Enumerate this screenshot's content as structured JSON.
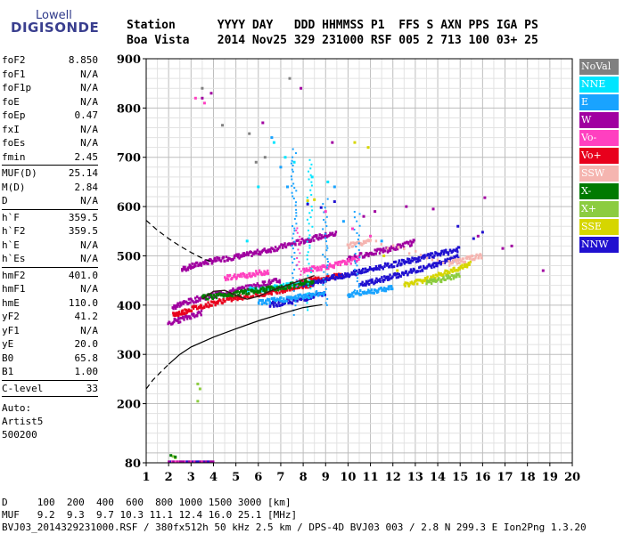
{
  "logo": {
    "top": "Lowell",
    "main": "DIGISONDE"
  },
  "header": {
    "line1": "Station      YYYY DAY   DDD HHMMSS P1  FFS S AXN PPS IGA PS",
    "line2": "Boa Vista    2014 Nov25 329 231000 RSF 005 2 713 100 03+ 25"
  },
  "params": {
    "group1": [
      {
        "k": "foF2",
        "v": "8.850"
      },
      {
        "k": "foF1",
        "v": "N/A"
      },
      {
        "k": "foF1p",
        "v": "N/A"
      },
      {
        "k": "foE",
        "v": "N/A"
      },
      {
        "k": "foEp",
        "v": "0.47"
      },
      {
        "k": "fxI",
        "v": "N/A"
      },
      {
        "k": "foEs",
        "v": "N/A"
      },
      {
        "k": "fmin",
        "v": "2.45"
      }
    ],
    "group2": [
      {
        "k": "MUF(D)",
        "v": "25.14"
      },
      {
        "k": "M(D)",
        "v": "2.84"
      },
      {
        "k": "D",
        "v": "N/A"
      }
    ],
    "group3": [
      {
        "k": "h`F",
        "v": "359.5"
      },
      {
        "k": "h`F2",
        "v": "359.5"
      },
      {
        "k": "h`E",
        "v": "N/A"
      },
      {
        "k": "h`Es",
        "v": "N/A"
      }
    ],
    "group4": [
      {
        "k": "hmF2",
        "v": "401.0"
      },
      {
        "k": "hmF1",
        "v": "N/A"
      },
      {
        "k": "hmE",
        "v": "110.0"
      },
      {
        "k": "yF2",
        "v": "41.2"
      },
      {
        "k": "yF1",
        "v": "N/A"
      },
      {
        "k": "yE",
        "v": "20.0"
      },
      {
        "k": "B0",
        "v": "65.8"
      },
      {
        "k": "B1",
        "v": "1.00"
      }
    ],
    "group5": [
      {
        "k": "C-level",
        "v": "33"
      }
    ],
    "auto": [
      "Auto:",
      "Artist5",
      "500200"
    ]
  },
  "footer": {
    "line1": "D     100  200  400  600  800 1000 1500 3000 [km]",
    "line2": "MUF   9.2  9.3  9.7 10.3 11.1 12.4 16.0 25.1 [MHz]",
    "line3": "BVJ03_2014329231000.RSF / 380fx512h 50 kHz 2.5 km / DPS-4D BVJ03 003 / 2.8 N 299.3 E Ion2Png 1.3.20"
  },
  "legend": [
    {
      "label": "NoVal",
      "color": "#808080"
    },
    {
      "label": "NNE",
      "color": "#00e5ff"
    },
    {
      "label": "E",
      "color": "#19a3ff"
    },
    {
      "label": "W",
      "color": "#a000a0"
    },
    {
      "label": "Vo-",
      "color": "#ff40c0"
    },
    {
      "label": "Vo+",
      "color": "#e8001c"
    },
    {
      "label": "SSW",
      "color": "#f5b5b0"
    },
    {
      "label": "X-",
      "color": "#007a00"
    },
    {
      "label": "X+",
      "color": "#8ccc40"
    },
    {
      "label": "SSE",
      "color": "#d6d600"
    },
    {
      "label": "NNW",
      "color": "#2010d0"
    }
  ],
  "chart_data": {
    "type": "scatter",
    "xlabel": "",
    "ylabel": "",
    "xlim": [
      1,
      20
    ],
    "ylim": [
      80,
      900
    ],
    "x_ticks": [
      "1",
      "2",
      "3",
      "4",
      "5",
      "6",
      "7",
      "8",
      "9",
      "10",
      "11",
      "12",
      "13",
      "14",
      "15",
      "16",
      "17",
      "18",
      "19",
      "20"
    ],
    "y_ticks": [
      "80",
      "200",
      "300",
      "400",
      "500",
      "600",
      "700",
      "800",
      "900"
    ],
    "grid": true,
    "x_minor_step": 0.5,
    "y_minor_step": 20,
    "traces": [
      {
        "name": "W",
        "color": "#a000a0",
        "points": [
          [
            2.6,
            472
          ],
          [
            3.0,
            478
          ],
          [
            3.5,
            485
          ],
          [
            4.0,
            490
          ],
          [
            4.5,
            494
          ],
          [
            5.0,
            498
          ],
          [
            5.5,
            502
          ],
          [
            6.0,
            507
          ],
          [
            6.5,
            512
          ],
          [
            7.0,
            518
          ],
          [
            7.5,
            524
          ],
          [
            8.0,
            530
          ],
          [
            8.5,
            536
          ],
          [
            9.0,
            541
          ],
          [
            9.5,
            545
          ]
        ]
      },
      {
        "name": "W",
        "color": "#a000a0",
        "points": [
          [
            2.2,
            395
          ],
          [
            2.5,
            402
          ],
          [
            3.0,
            408
          ],
          [
            3.5,
            415
          ],
          [
            4.0,
            420
          ],
          [
            4.5,
            425
          ],
          [
            5.0,
            430
          ],
          [
            5.5,
            435
          ],
          [
            6.0,
            440
          ],
          [
            6.5,
            446
          ],
          [
            7.0,
            450
          ]
        ]
      },
      {
        "name": "W",
        "color": "#a000a0",
        "points": [
          [
            10.0,
            495
          ],
          [
            10.5,
            500
          ],
          [
            11.0,
            505
          ],
          [
            11.5,
            510
          ],
          [
            12.0,
            515
          ],
          [
            12.5,
            522
          ],
          [
            13.0,
            528
          ]
        ]
      },
      {
        "name": "W",
        "color": "#a000a0",
        "points": [
          [
            2.0,
            365
          ],
          [
            2.5,
            370
          ],
          [
            3.0,
            378
          ],
          [
            3.5,
            385
          ]
        ]
      },
      {
        "name": "Vo+",
        "color": "#e8001c",
        "points": [
          [
            2.2,
            380
          ],
          [
            2.6,
            385
          ],
          [
            3.0,
            392
          ],
          [
            3.5,
            398
          ],
          [
            4.0,
            404
          ],
          [
            4.5,
            410
          ],
          [
            5.0,
            414
          ],
          [
            5.5,
            418
          ],
          [
            6.0,
            422
          ],
          [
            6.5,
            426
          ],
          [
            7.0,
            430
          ],
          [
            7.5,
            434
          ],
          [
            8.0,
            438
          ],
          [
            8.5,
            442
          ]
        ]
      },
      {
        "name": "Vo+",
        "color": "#e8001c",
        "points": [
          [
            7.8,
            445
          ],
          [
            8.2,
            448
          ],
          [
            8.6,
            452
          ],
          [
            9.0,
            455
          ],
          [
            9.4,
            458
          ],
          [
            9.8,
            461
          ]
        ]
      },
      {
        "name": "Vo-",
        "color": "#ff40c0",
        "points": [
          [
            8.0,
            470
          ],
          [
            8.5,
            474
          ],
          [
            9.0,
            478
          ],
          [
            9.5,
            482
          ],
          [
            10.0,
            488
          ],
          [
            10.5,
            494
          ]
        ]
      },
      {
        "name": "Vo-",
        "color": "#ff40c0",
        "points": [
          [
            4.5,
            455
          ],
          [
            5.0,
            458
          ],
          [
            5.5,
            461
          ],
          [
            6.0,
            465
          ],
          [
            6.5,
            468
          ]
        ]
      },
      {
        "name": "NNW",
        "color": "#2010d0",
        "points": [
          [
            8.0,
            440
          ],
          [
            8.5,
            445
          ],
          [
            9.0,
            452
          ],
          [
            9.5,
            458
          ],
          [
            10.0,
            462
          ],
          [
            10.5,
            468
          ],
          [
            11.0,
            472
          ],
          [
            11.5,
            478
          ],
          [
            12.0,
            482
          ],
          [
            12.5,
            488
          ],
          [
            13.0,
            492
          ],
          [
            13.5,
            498
          ],
          [
            14.0,
            503
          ],
          [
            14.5,
            508
          ],
          [
            15.0,
            514
          ]
        ]
      },
      {
        "name": "NNW",
        "color": "#2010d0",
        "points": [
          [
            10.5,
            440
          ],
          [
            11.0,
            446
          ],
          [
            11.5,
            452
          ],
          [
            12.0,
            458
          ],
          [
            12.5,
            464
          ],
          [
            13.0,
            470
          ],
          [
            13.5,
            476
          ],
          [
            14.0,
            484
          ],
          [
            14.5,
            490
          ],
          [
            15.0,
            498
          ]
        ]
      },
      {
        "name": "NNW",
        "color": "#2010d0",
        "points": [
          [
            6.5,
            400
          ],
          [
            7.0,
            404
          ],
          [
            7.5,
            408
          ],
          [
            8.0,
            413
          ],
          [
            8.5,
            418
          ],
          [
            9.0,
            423
          ]
        ]
      },
      {
        "name": "NNE",
        "color": "#00e5ff",
        "points": [
          [
            5.5,
            430
          ],
          [
            6.0,
            432
          ],
          [
            6.5,
            435
          ],
          [
            7.0,
            438
          ],
          [
            7.5,
            441
          ],
          [
            8.0,
            444
          ]
        ]
      },
      {
        "name": "E",
        "color": "#19a3ff",
        "points": [
          [
            6.0,
            405
          ],
          [
            6.5,
            408
          ],
          [
            7.0,
            411
          ],
          [
            7.5,
            414
          ],
          [
            8.0,
            418
          ],
          [
            8.5,
            422
          ],
          [
            9.0,
            425
          ]
        ]
      },
      {
        "name": "E",
        "color": "#19a3ff",
        "points": [
          [
            10.0,
            420
          ],
          [
            10.5,
            424
          ],
          [
            11.0,
            428
          ],
          [
            11.5,
            432
          ],
          [
            12.0,
            436
          ]
        ]
      },
      {
        "name": "SSE",
        "color": "#d6d600",
        "points": [
          [
            12.5,
            440
          ],
          [
            13.0,
            446
          ],
          [
            13.5,
            452
          ],
          [
            14.0,
            460
          ],
          [
            14.5,
            468
          ],
          [
            15.0,
            476
          ],
          [
            15.5,
            484
          ]
        ]
      },
      {
        "name": "SSW",
        "color": "#f5b5b0",
        "points": [
          [
            10.0,
            520
          ],
          [
            10.5,
            525
          ],
          [
            11.0,
            530
          ],
          [
            14.5,
            485
          ],
          [
            15.0,
            490
          ],
          [
            15.5,
            495
          ],
          [
            16.0,
            500
          ]
        ]
      },
      {
        "name": "X-",
        "color": "#007a00",
        "points": [
          [
            3.5,
            415
          ],
          [
            4.0,
            418
          ],
          [
            4.5,
            421
          ],
          [
            5.0,
            424
          ],
          [
            5.5,
            427
          ],
          [
            6.0,
            430
          ],
          [
            6.5,
            433
          ],
          [
            7.0,
            436
          ],
          [
            7.5,
            440
          ],
          [
            8.0,
            444
          ],
          [
            8.5,
            448
          ]
        ]
      },
      {
        "name": "X+",
        "color": "#8ccc40",
        "points": [
          [
            13.5,
            445
          ],
          [
            14.0,
            450
          ],
          [
            14.5,
            456
          ],
          [
            15.0,
            462
          ]
        ]
      }
    ],
    "scatter_points": [
      {
        "color": "#a000a0",
        "points": [
          [
            3.5,
            820
          ],
          [
            3.9,
            830
          ],
          [
            6.2,
            770
          ],
          [
            7.9,
            840
          ],
          [
            9.3,
            730
          ],
          [
            10.7,
            580
          ],
          [
            11.2,
            590
          ],
          [
            12.6,
            600
          ],
          [
            13.8,
            595
          ],
          [
            15.8,
            540
          ],
          [
            16.1,
            618
          ],
          [
            16.9,
            515
          ],
          [
            17.3,
            520
          ],
          [
            18.7,
            470
          ]
        ]
      },
      {
        "color": "#2010d0",
        "points": [
          [
            8.2,
            605
          ],
          [
            8.8,
            598
          ],
          [
            9.4,
            610
          ],
          [
            14.9,
            560
          ],
          [
            15.6,
            535
          ],
          [
            16.0,
            548
          ]
        ]
      },
      {
        "color": "#d6d600",
        "points": [
          [
            8.2,
            612
          ],
          [
            8.5,
            614
          ],
          [
            10.3,
            730
          ],
          [
            10.9,
            720
          ],
          [
            11.6,
            500
          ],
          [
            12.2,
            470
          ]
        ]
      },
      {
        "color": "#00e5ff",
        "points": [
          [
            6.7,
            730
          ],
          [
            7.2,
            700
          ],
          [
            7.6,
            690
          ],
          [
            8.4,
            660
          ],
          [
            9.1,
            650
          ],
          [
            6.0,
            640
          ],
          [
            5.5,
            530
          ]
        ]
      },
      {
        "color": "#19a3ff",
        "points": [
          [
            6.6,
            740
          ],
          [
            7.0,
            680
          ],
          [
            7.3,
            640
          ],
          [
            9.4,
            640
          ],
          [
            9.8,
            570
          ],
          [
            11.5,
            530
          ]
        ]
      },
      {
        "color": "#ff40c0",
        "points": [
          [
            3.2,
            820
          ],
          [
            3.6,
            810
          ],
          [
            9.0,
            590
          ],
          [
            10.2,
            555
          ],
          [
            11.0,
            540
          ]
        ]
      },
      {
        "color": "#808080",
        "points": [
          [
            4.4,
            765
          ],
          [
            5.6,
            748
          ],
          [
            5.9,
            690
          ],
          [
            6.3,
            700
          ],
          [
            7.4,
            860
          ],
          [
            3.5,
            840
          ]
        ]
      },
      {
        "color": "#8ccc40",
        "points": [
          [
            3.3,
            240
          ],
          [
            3.4,
            230
          ],
          [
            3.3,
            205
          ],
          [
            2.3,
            90
          ],
          [
            2.2,
            93
          ]
        ]
      },
      {
        "color": "#007a00",
        "points": [
          [
            2.1,
            95
          ],
          [
            2.3,
            92
          ]
        ]
      }
    ],
    "low_band": [
      [
        2.0,
        82
      ],
      [
        2.5,
        82
      ],
      [
        3.0,
        83
      ],
      [
        3.5,
        82
      ],
      [
        4.0,
        82
      ]
    ],
    "profile_solid": [
      [
        2.0,
        280
      ],
      [
        2.5,
        300
      ],
      [
        3.0,
        315
      ],
      [
        4.0,
        335
      ],
      [
        5.0,
        352
      ],
      [
        6.0,
        368
      ],
      [
        7.0,
        382
      ],
      [
        8.0,
        395
      ],
      [
        8.85,
        401
      ]
    ],
    "profile_dashed_low": [
      [
        1.0,
        230
      ],
      [
        1.3,
        248
      ],
      [
        1.6,
        262
      ],
      [
        2.0,
        280
      ]
    ],
    "profile_dashed_high": [
      [
        1.0,
        572
      ],
      [
        1.5,
        552
      ],
      [
        2.0,
        535
      ],
      [
        2.5,
        520
      ],
      [
        3.0,
        507
      ],
      [
        3.5,
        495
      ],
      [
        3.9,
        488
      ]
    ],
    "trace_black": [
      [
        3.5,
        412
      ],
      [
        4.0,
        428
      ],
      [
        4.5,
        430
      ],
      [
        5.0,
        420
      ],
      [
        5.5,
        412
      ],
      [
        6.0,
        418
      ],
      [
        6.5,
        428
      ],
      [
        7.0,
        436
      ],
      [
        7.5,
        444
      ],
      [
        8.0,
        452
      ],
      [
        8.5,
        460
      ]
    ]
  }
}
